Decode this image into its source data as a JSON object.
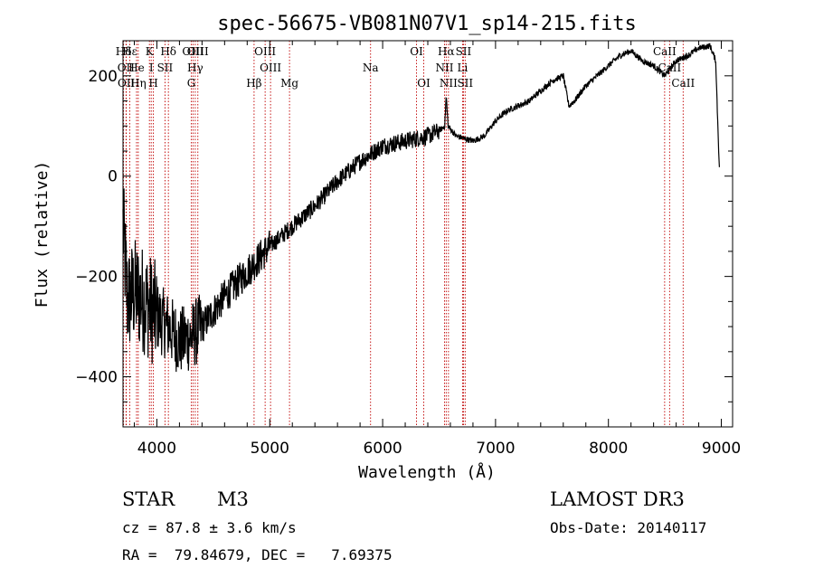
{
  "chart_data": {
    "type": "line",
    "title": "spec-56675-VB081N07V1_sp14-215.fits",
    "xlabel": "Wavelength (Å)",
    "ylabel": "Flux (relative)",
    "xlim": [
      3700,
      9100
    ],
    "ylim": [
      -500,
      270
    ],
    "xticks": [
      4000,
      5000,
      6000,
      7000,
      8000,
      9000
    ],
    "yticks": [
      -400,
      -200,
      0,
      200
    ],
    "spectrum_anchors": [
      [
        3700,
        -100
      ],
      [
        3740,
        -250
      ],
      [
        3800,
        -230
      ],
      [
        3900,
        -250
      ],
      [
        4000,
        -280
      ],
      [
        4100,
        -300
      ],
      [
        4200,
        -330
      ],
      [
        4300,
        -320
      ],
      [
        4400,
        -300
      ],
      [
        4600,
        -240
      ],
      [
        4800,
        -190
      ],
      [
        5000,
        -140
      ],
      [
        5200,
        -100
      ],
      [
        5400,
        -60
      ],
      [
        5600,
        -10
      ],
      [
        5800,
        30
      ],
      [
        6000,
        60
      ],
      [
        6200,
        70
      ],
      [
        6400,
        80
      ],
      [
        6500,
        90
      ],
      [
        6550,
        100
      ],
      [
        6563,
        160
      ],
      [
        6580,
        100
      ],
      [
        6650,
        80
      ],
      [
        6800,
        70
      ],
      [
        6900,
        80
      ],
      [
        7000,
        110
      ],
      [
        7100,
        130
      ],
      [
        7200,
        140
      ],
      [
        7300,
        150
      ],
      [
        7400,
        170
      ],
      [
        7500,
        190
      ],
      [
        7600,
        200
      ],
      [
        7650,
        140
      ],
      [
        7700,
        150
      ],
      [
        7800,
        180
      ],
      [
        7900,
        200
      ],
      [
        8000,
        220
      ],
      [
        8100,
        240
      ],
      [
        8200,
        250
      ],
      [
        8300,
        230
      ],
      [
        8400,
        220
      ],
      [
        8500,
        200
      ],
      [
        8600,
        230
      ],
      [
        8700,
        240
      ],
      [
        8800,
        255
      ],
      [
        8900,
        260
      ],
      [
        8950,
        230
      ],
      [
        8985,
        0
      ]
    ],
    "lines": [
      {
        "label": "Hδ",
        "wl": 3705,
        "row": 0
      },
      {
        "label": "OII",
        "wl": 3727,
        "row": 1
      },
      {
        "label": "OII",
        "wl": 3729,
        "row": 2
      },
      {
        "label": "Hε",
        "wl": 3760,
        "row": 0
      },
      {
        "label": "He",
        "wl": 3820,
        "row": 1
      },
      {
        "label": "Hη",
        "wl": 3835,
        "row": 2
      },
      {
        "label": "K",
        "wl": 3934,
        "row": 0
      },
      {
        "label": "I",
        "wl": 3950,
        "row": 1
      },
      {
        "label": "H",
        "wl": 3969,
        "row": 2
      },
      {
        "label": "SII",
        "wl": 4072,
        "row": 1
      },
      {
        "label": "Hδ",
        "wl": 4102,
        "row": 0
      },
      {
        "label": "G",
        "wl": 4305,
        "row": 2
      },
      {
        "label": "OIII",
        "wl": 4320,
        "row": 0
      },
      {
        "label": "Hγ",
        "wl": 4340,
        "row": 1
      },
      {
        "label": "OIII",
        "wl": 4363,
        "row": 0
      },
      {
        "label": "Hβ",
        "wl": 4861,
        "row": 2
      },
      {
        "label": "OIII",
        "wl": 4959,
        "row": 0
      },
      {
        "label": "OIII",
        "wl": 5007,
        "row": 1
      },
      {
        "label": "Mg",
        "wl": 5175,
        "row": 2
      },
      {
        "label": "Na",
        "wl": 5893,
        "row": 1
      },
      {
        "label": "OI",
        "wl": 6300,
        "row": 0
      },
      {
        "label": "OI",
        "wl": 6364,
        "row": 2
      },
      {
        "label": "NII",
        "wl": 6548,
        "row": 1
      },
      {
        "label": "Hα",
        "wl": 6563,
        "row": 0
      },
      {
        "label": "NII",
        "wl": 6583,
        "row": 2
      },
      {
        "label": "Li",
        "wl": 6708,
        "row": 1
      },
      {
        "label": "SII",
        "wl": 6716,
        "row": 0
      },
      {
        "label": "SII",
        "wl": 6731,
        "row": 2
      },
      {
        "label": "CaII",
        "wl": 8498,
        "row": 0
      },
      {
        "label": "CaII",
        "wl": 8542,
        "row": 1
      },
      {
        "label": "CaII",
        "wl": 8662,
        "row": 2
      }
    ]
  },
  "info": {
    "class": "STAR",
    "subclass": "M3",
    "survey": "LAMOST DR3",
    "cz": "cz = 87.8 ± 3.6 km/s",
    "obs_date": "Obs-Date: 20140117",
    "radec": "RA =  79.84679, DEC =   7.69375"
  }
}
